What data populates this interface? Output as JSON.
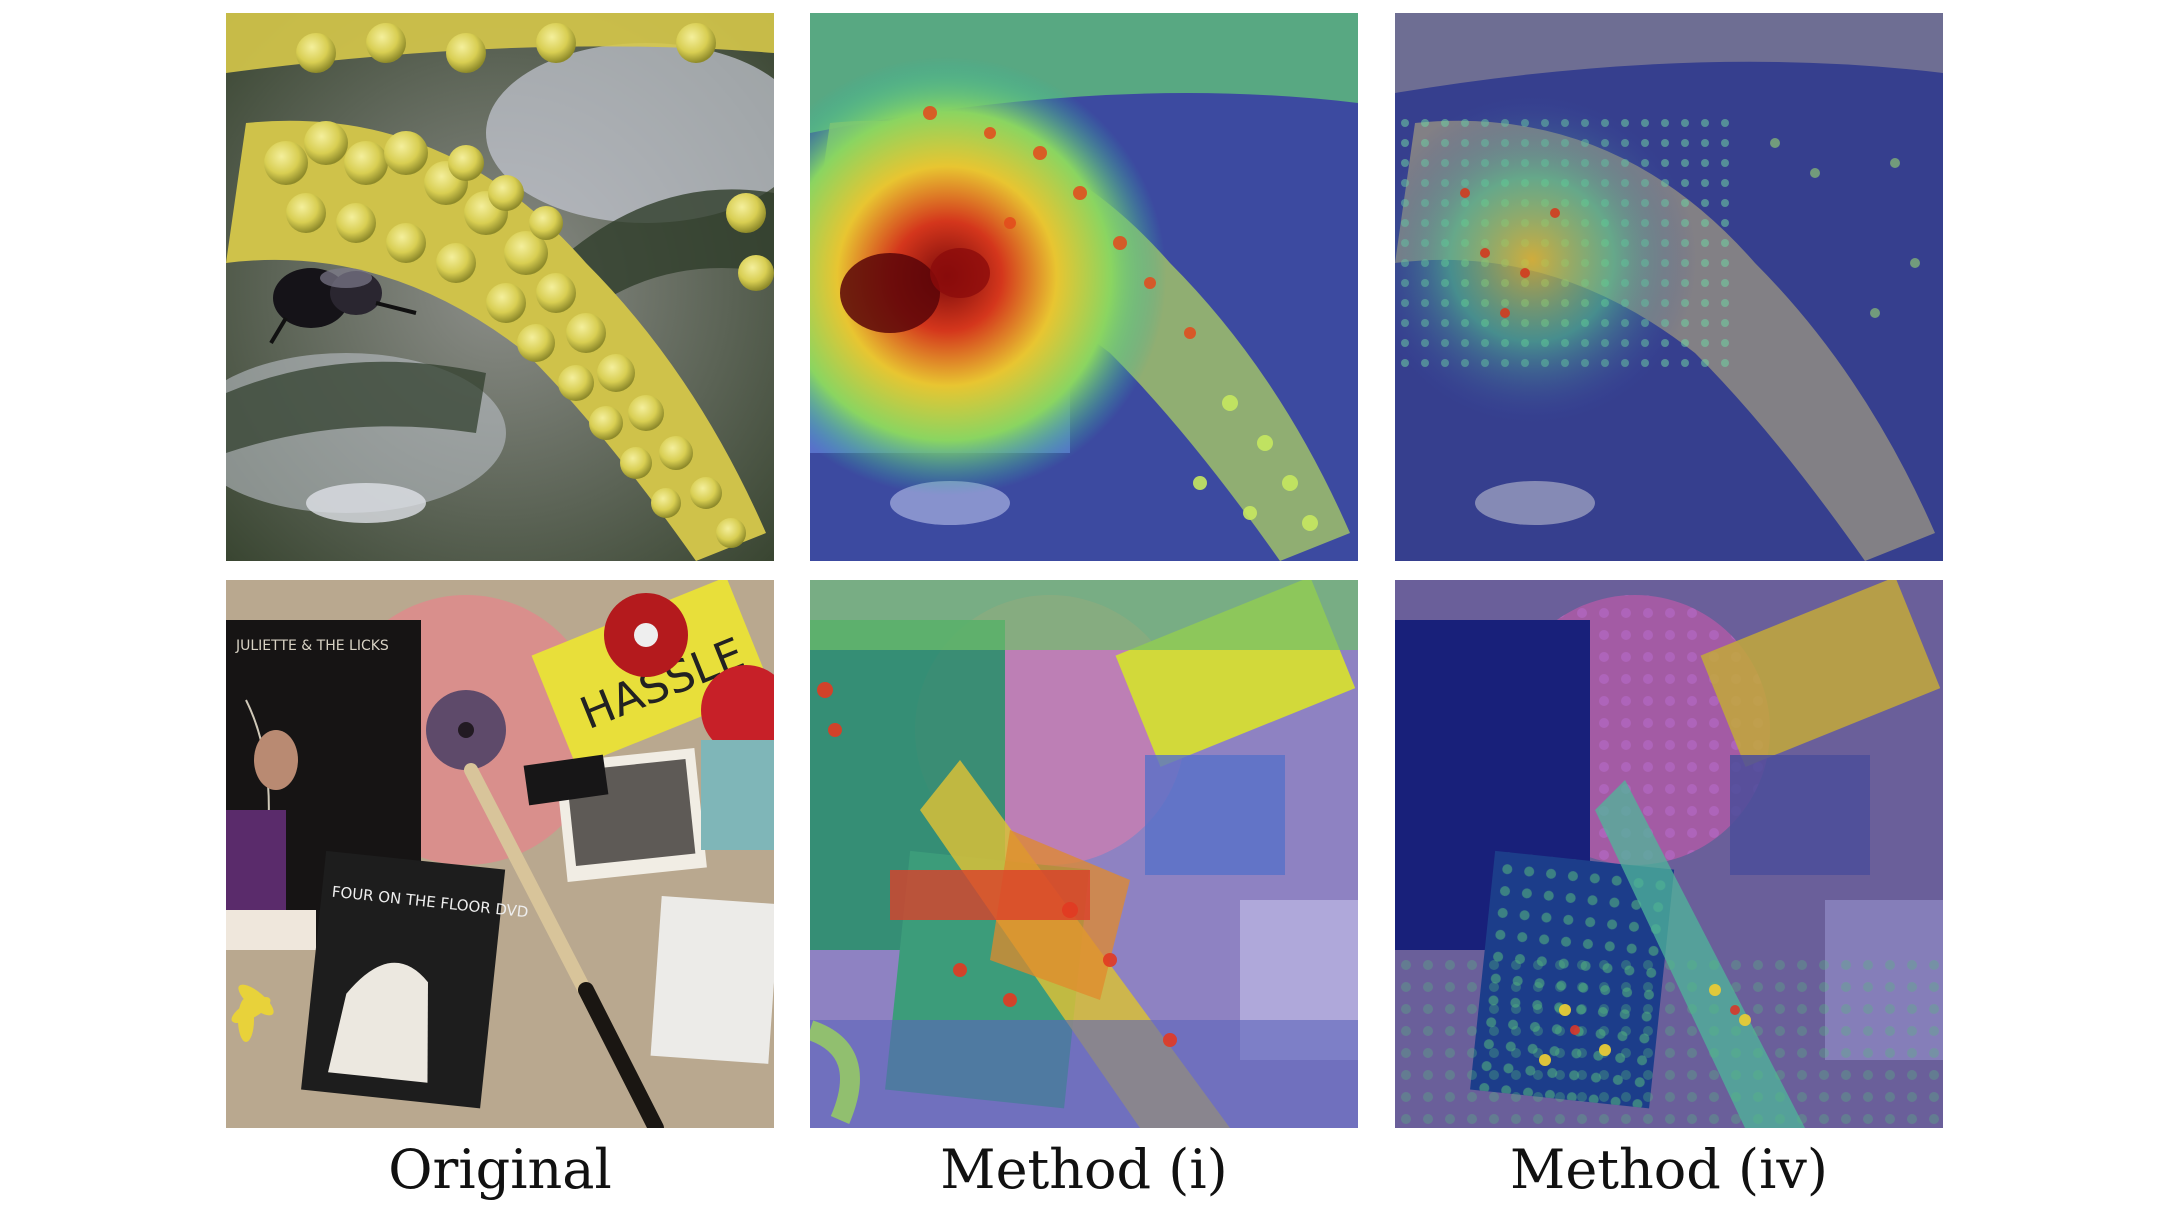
{
  "figure": {
    "columns": [
      {
        "caption": "Original"
      },
      {
        "caption": "Method (i)"
      },
      {
        "caption": "Method (iv)"
      }
    ],
    "rows": [
      {
        "subject": "flower-with-bee"
      },
      {
        "subject": "records-and-cds"
      }
    ],
    "album_text": {
      "sticker_text": "HASSLE",
      "dvd_title": "FOUR ON THE FLOOR DVD",
      "cd_title": "JULIETTE & THE LICKS"
    }
  }
}
